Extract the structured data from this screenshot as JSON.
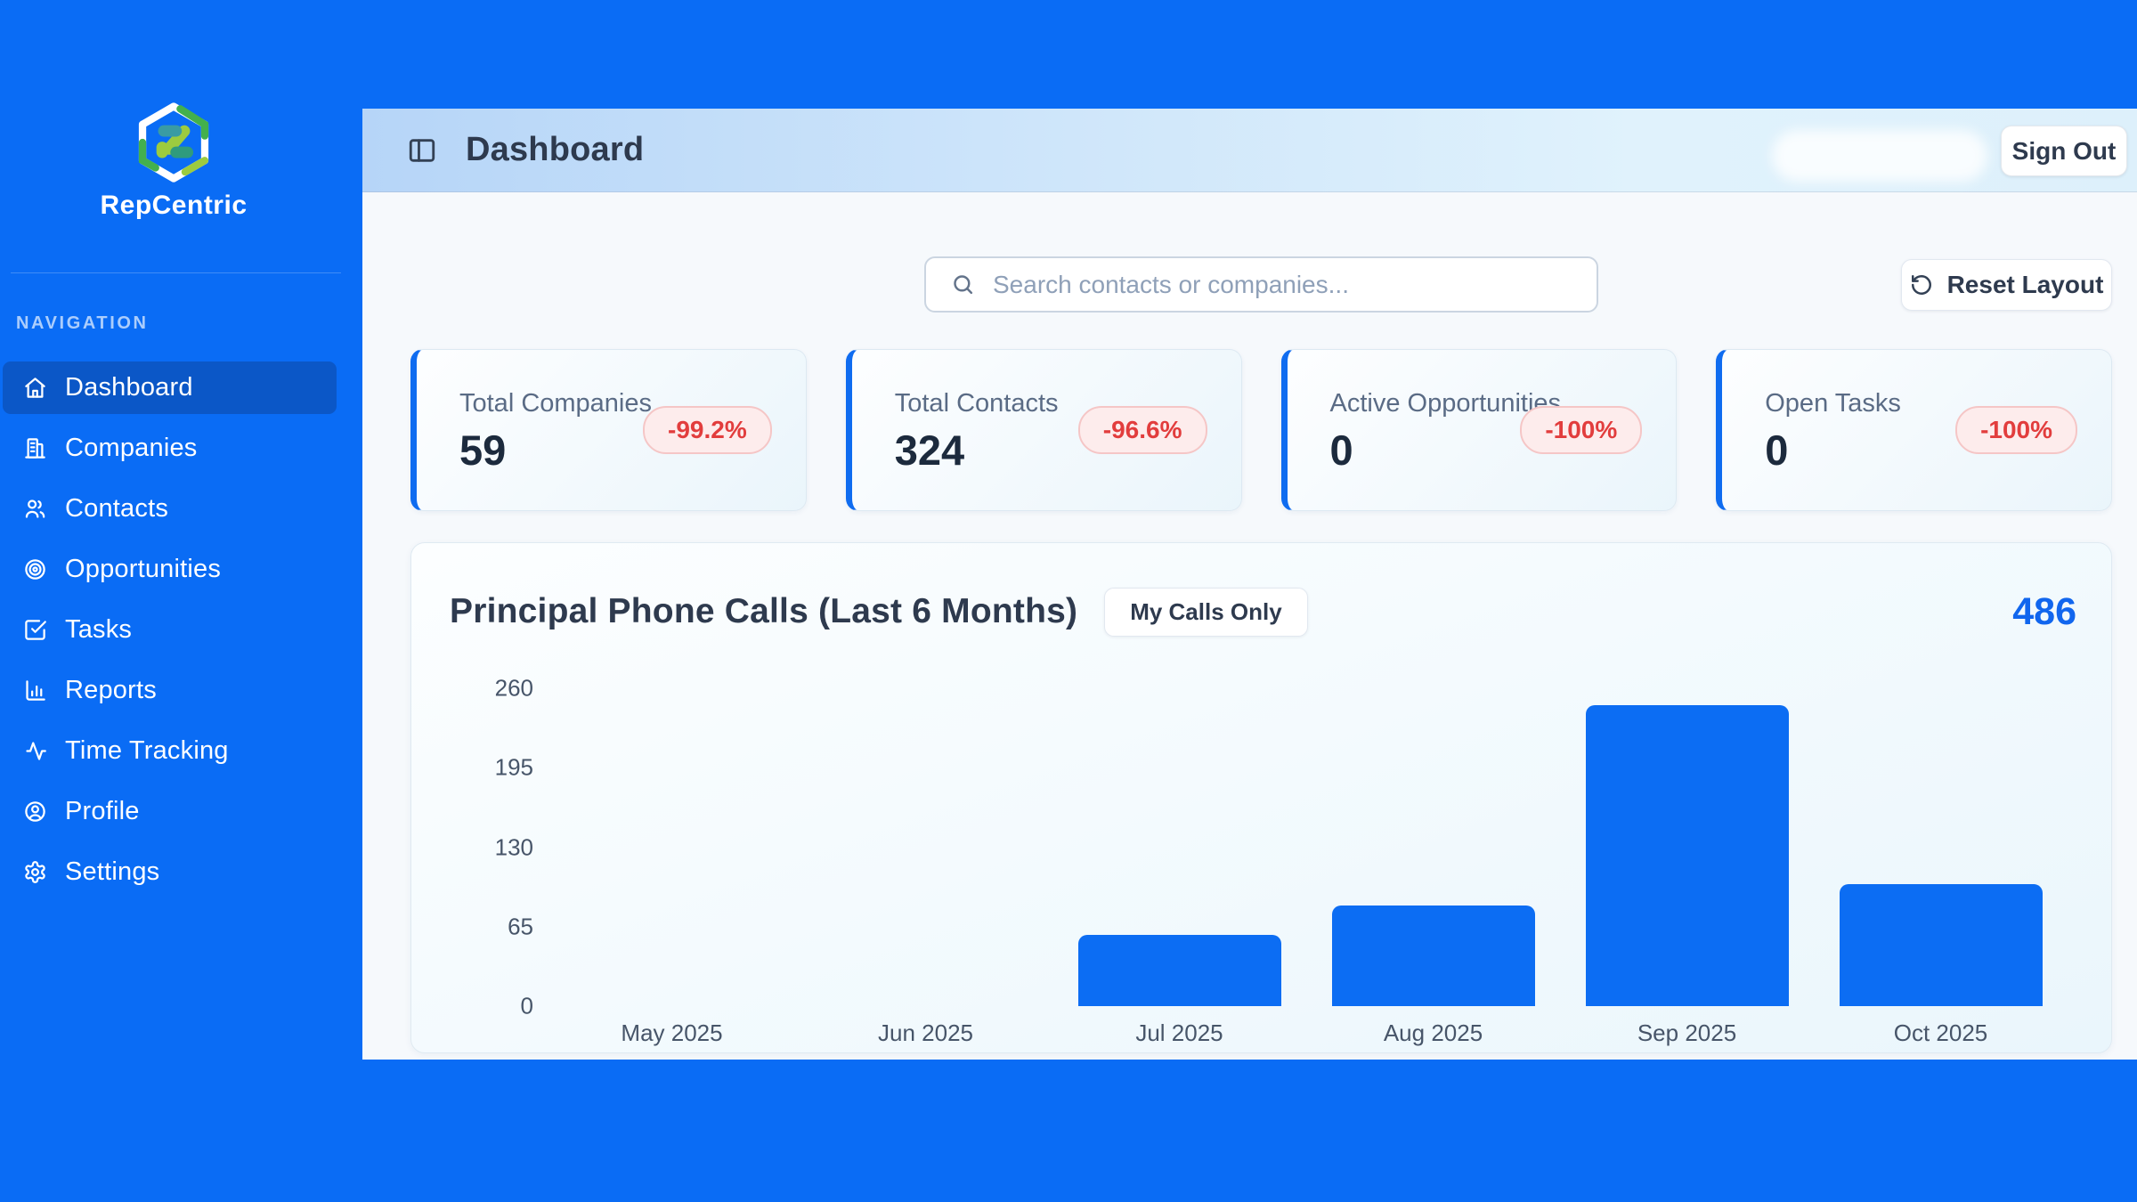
{
  "app": {
    "brand": "RepCentric"
  },
  "colors": {
    "background_blue": "#0a6cf5",
    "active_nav_blue": "#0b57c7",
    "bar_blue": "#0c6df3",
    "card_accent_blue": "#0f6cf0",
    "total_blue": "#1166ee",
    "badge_red_text": "#e23d3d",
    "badge_red_bg": "#fdecec",
    "title_slate": "#2e3a4e",
    "value_dark": "#1c2a3d",
    "label_gray": "#5a6b85",
    "logo_green": "#43b04d",
    "logo_lime": "#9ccb3f",
    "logo_teal": "#3a9ba3"
  },
  "sidebar": {
    "section_label": "NAVIGATION",
    "items": [
      {
        "label": "Dashboard",
        "icon": "home",
        "active": true
      },
      {
        "label": "Companies",
        "icon": "building",
        "active": false
      },
      {
        "label": "Contacts",
        "icon": "users",
        "active": false
      },
      {
        "label": "Opportunities",
        "icon": "target",
        "active": false
      },
      {
        "label": "Tasks",
        "icon": "check-square",
        "active": false
      },
      {
        "label": "Reports",
        "icon": "bar-chart",
        "active": false
      },
      {
        "label": "Time Tracking",
        "icon": "activity",
        "active": false
      },
      {
        "label": "Profile",
        "icon": "user-circle",
        "active": false
      },
      {
        "label": "Settings",
        "icon": "gear",
        "active": false
      }
    ]
  },
  "header": {
    "title": "Dashboard",
    "sign_out_label": "Sign Out"
  },
  "toolbar": {
    "search_placeholder": "Search contacts or companies...",
    "reset_label": "Reset Layout"
  },
  "stats": [
    {
      "label": "Total Companies",
      "value": "59",
      "change": "-99.2%"
    },
    {
      "label": "Total Contacts",
      "value": "324",
      "change": "-96.6%"
    },
    {
      "label": "Active Opportunities",
      "value": "0",
      "change": "-100%"
    },
    {
      "label": "Open Tasks",
      "value": "0",
      "change": "-100%"
    }
  ],
  "chart_card": {
    "title": "Principal Phone Calls (Last 6 Months)",
    "toggle_label": "My Calls Only",
    "total": "486"
  },
  "chart_data": {
    "type": "bar",
    "title": "Principal Phone Calls (Last 6 Months)",
    "categories": [
      "May 2025",
      "Jun 2025",
      "Jul 2025",
      "Aug 2025",
      "Sep 2025",
      "Oct 2025"
    ],
    "values": [
      0,
      0,
      58,
      82,
      246,
      100
    ],
    "total_displayed": 486,
    "xlabel": "",
    "ylabel": "",
    "ylim": [
      0,
      260
    ],
    "yticks": [
      0,
      65,
      130,
      195,
      260
    ],
    "grid": false,
    "legend": false,
    "bar_color": "#0c6df3"
  }
}
